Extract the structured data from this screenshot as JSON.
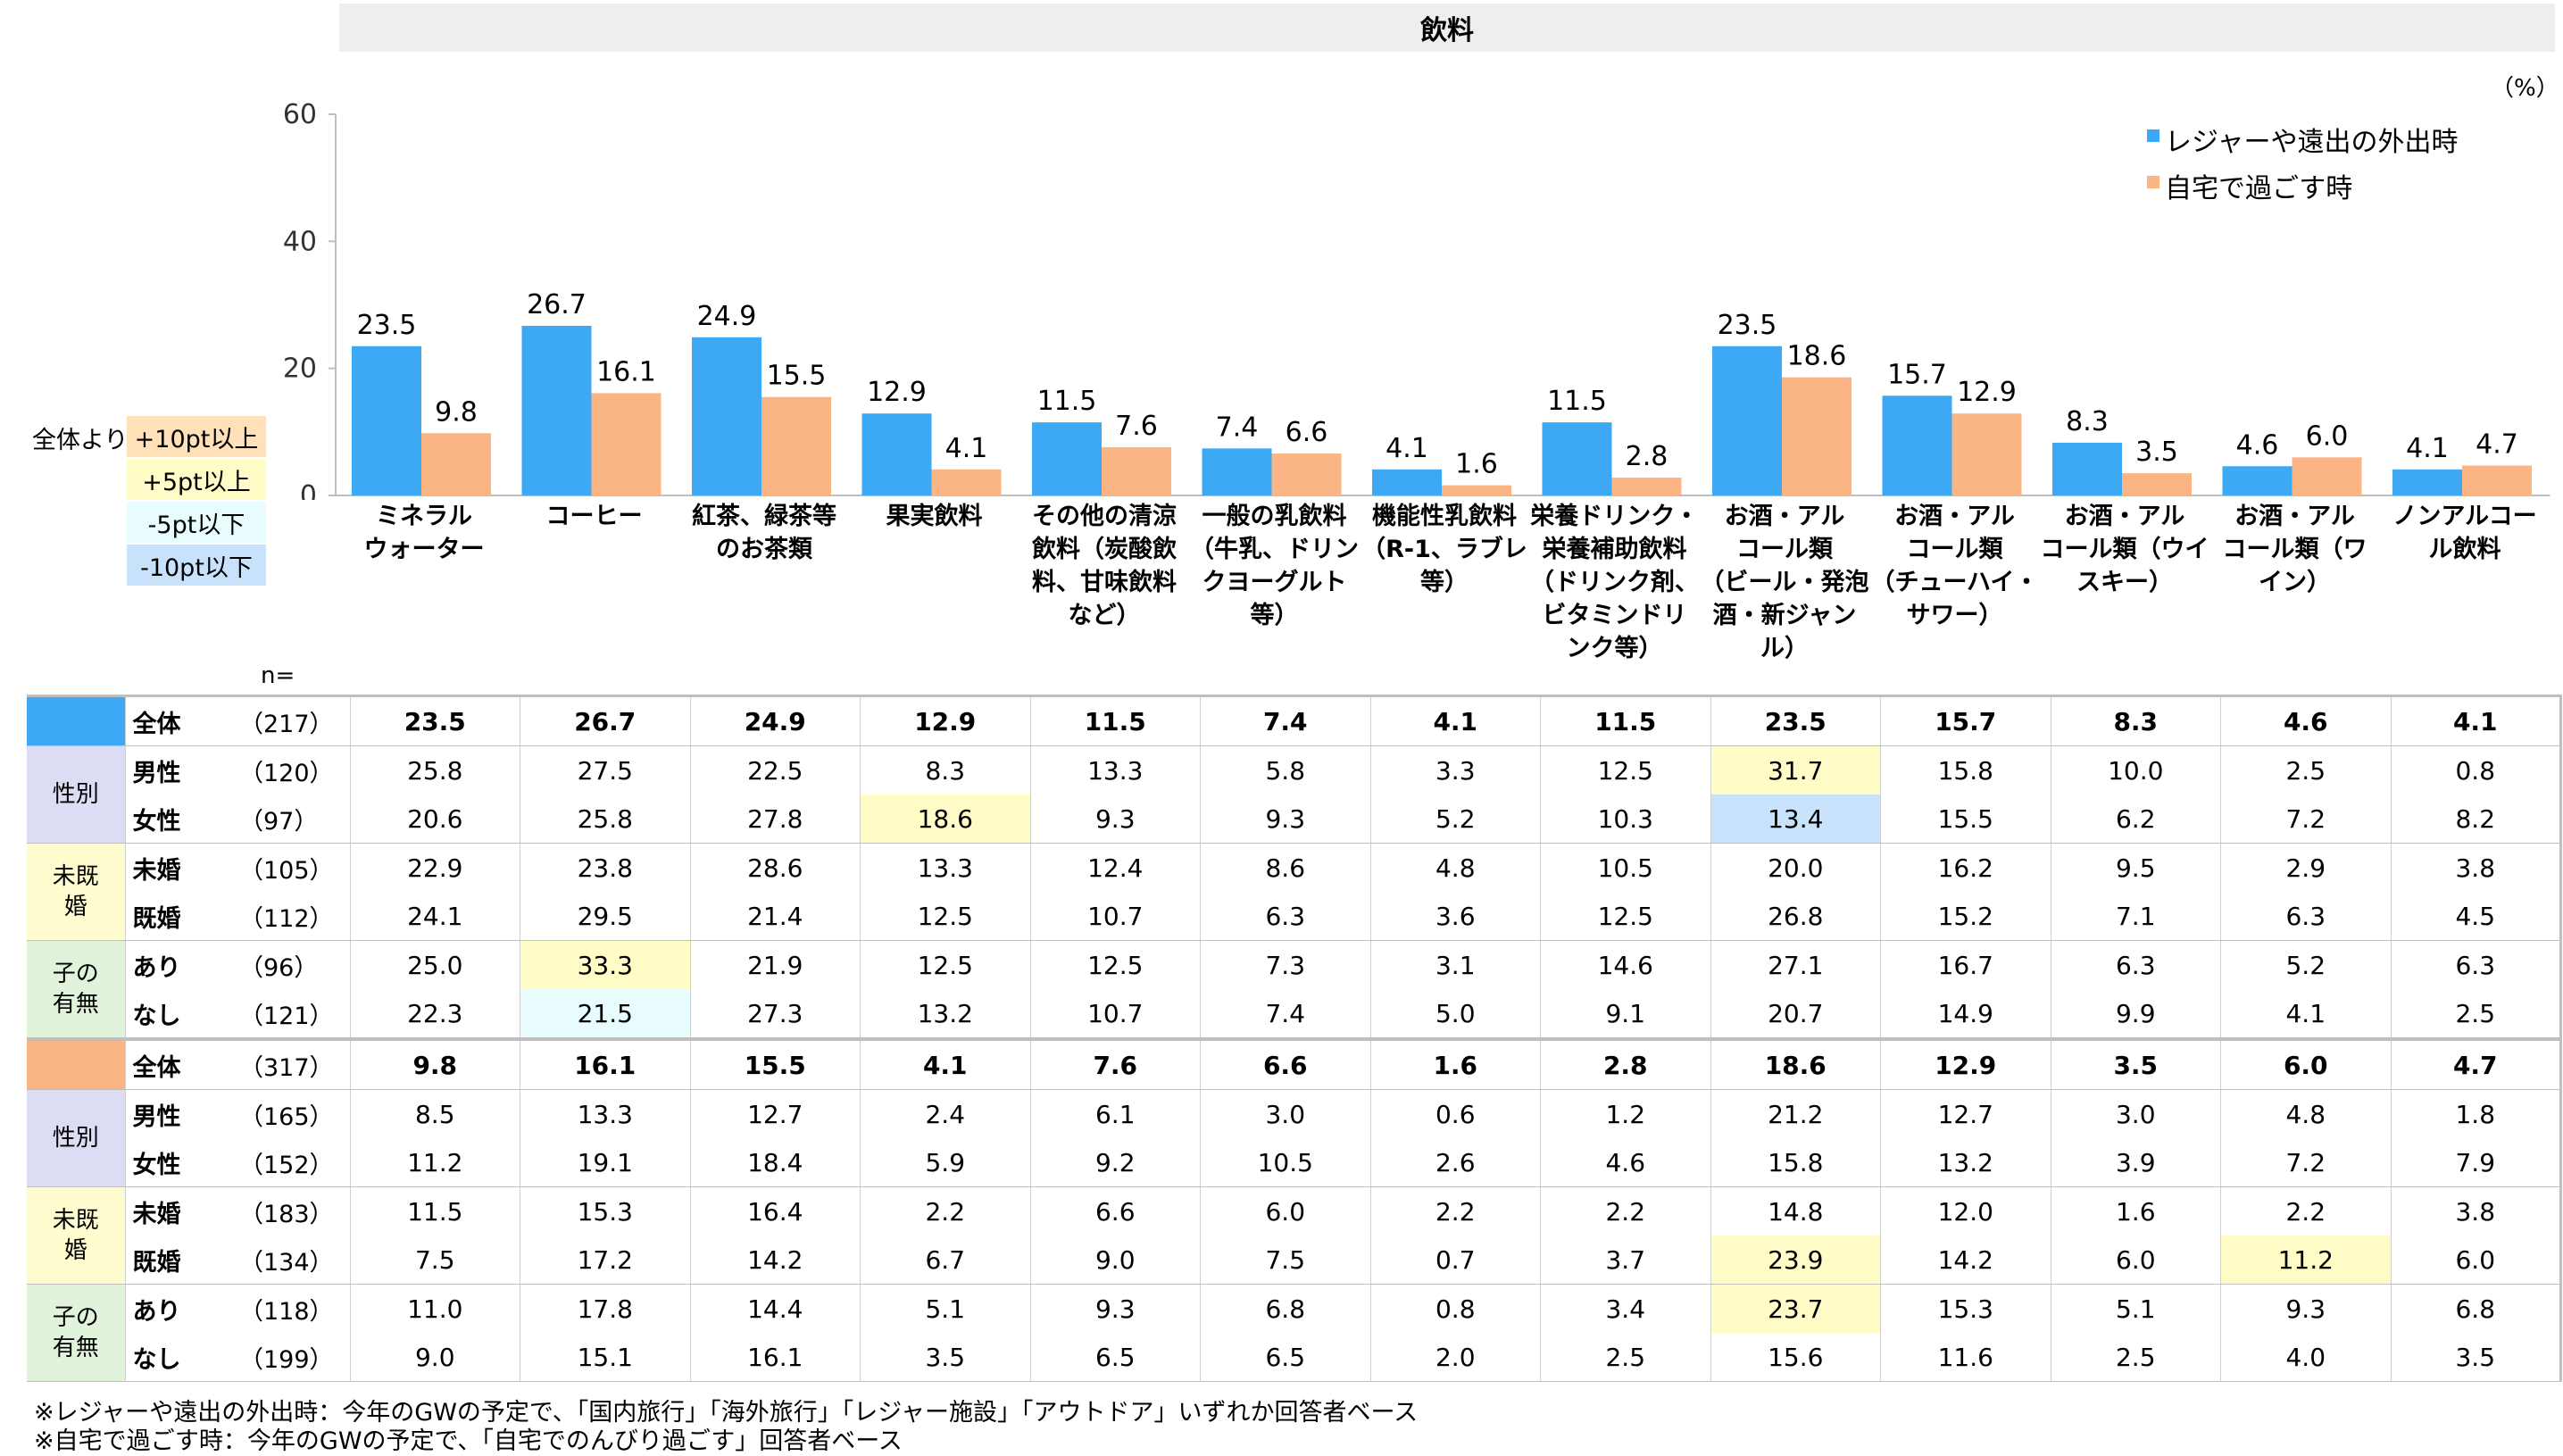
{
  "page": {
    "title": "飲料",
    "unit": "（%）"
  },
  "legend": [
    {
      "label": "レジャーや遠出の外出時",
      "color": "#3da9f4"
    },
    {
      "label": "自宅で過ごす時",
      "color": "#fbb584"
    }
  ],
  "highlight_legend": {
    "title": "全体より",
    "items": [
      {
        "label": "+10pt以上",
        "color": "#ffe0b8"
      },
      {
        "label": "+5pt以上",
        "color": "#fffcc8"
      },
      {
        "label": "-5pt以下",
        "color": "#e8fbfd"
      },
      {
        "label": "-10pt以下",
        "color": "#c8e2fb"
      }
    ]
  },
  "chart_data": {
    "type": "bar",
    "title": "飲料",
    "categories": [
      [
        "ミネラル",
        "ウォーター"
      ],
      [
        "コーヒー"
      ],
      [
        "紅茶、緑茶等",
        "のお茶類"
      ],
      [
        "果実飲料"
      ],
      [
        "その他の清涼",
        "飲料（炭酸飲",
        "料、甘味飲料",
        "など）"
      ],
      [
        "一般の乳飲料",
        "（牛乳、ドリン",
        "クヨーグルト",
        "等）"
      ],
      [
        "機能性乳飲料",
        "（R-1、ラブレ",
        "等）"
      ],
      [
        "栄養ドリンク・",
        "栄養補助飲料",
        "（ドリンク剤、",
        "ビタミンドリ",
        "ンク等）"
      ],
      [
        "お酒・アル",
        "コール類",
        "（ビール・発泡",
        "酒・新ジャン",
        "ル）"
      ],
      [
        "お酒・アル",
        "コール類",
        "（チューハイ・",
        "サワー）"
      ],
      [
        "お酒・アル",
        "コール類（ウイ",
        "スキー）"
      ],
      [
        "お酒・アル",
        "コール類（ワ",
        "イン）"
      ],
      [
        "ノンアルコー",
        "ル飲料"
      ]
    ],
    "series": [
      {
        "name": "レジャーや遠出の外出時",
        "values": [
          23.5,
          26.7,
          24.9,
          12.9,
          11.5,
          7.4,
          4.1,
          11.5,
          23.5,
          15.7,
          8.3,
          4.6,
          4.1
        ]
      },
      {
        "name": "自宅で過ごす時",
        "values": [
          9.8,
          16.1,
          15.5,
          4.1,
          7.6,
          6.6,
          1.6,
          2.8,
          18.6,
          12.9,
          3.5,
          6.0,
          4.7
        ]
      }
    ],
    "ylim": [
      0,
      60
    ],
    "yticks": [
      0,
      20,
      40,
      60
    ],
    "xlabel": "",
    "ylabel": "",
    "legend_position": "top-right"
  },
  "table": {
    "n_label": "n=",
    "blocks": [
      {
        "color": "#3da9f4",
        "total": {
          "label": "全体",
          "n": "（217）",
          "values": [
            "23.5",
            "26.7",
            "24.9",
            "12.9",
            "11.5",
            "7.4",
            "4.1",
            "11.5",
            "23.5",
            "15.7",
            "8.3",
            "4.6",
            "4.1"
          ]
        },
        "groups": [
          {
            "label": "性別",
            "bg": "#dcdcf4",
            "rows": [
              {
                "label": "男性",
                "n": "（120）",
                "values": [
                  "25.8",
                  "27.5",
                  "22.5",
                  "8.3",
                  "13.3",
                  "5.8",
                  "3.3",
                  "12.5",
                  "31.7",
                  "15.8",
                  "10.0",
                  "2.5",
                  "0.8"
                ],
                "hl": {
                  "8": "#fffcc8"
                }
              },
              {
                "label": "女性",
                "n": "（97）",
                "values": [
                  "20.6",
                  "25.8",
                  "27.8",
                  "18.6",
                  "9.3",
                  "9.3",
                  "5.2",
                  "10.3",
                  "13.4",
                  "15.5",
                  "6.2",
                  "7.2",
                  "8.2"
                ],
                "hl": {
                  "3": "#fffcc8",
                  "8": "#c8e2fb"
                }
              }
            ]
          },
          {
            "label": "未既婚",
            "bg": "#fffcd0",
            "rows": [
              {
                "label": "未婚",
                "n": "（105）",
                "values": [
                  "22.9",
                  "23.8",
                  "28.6",
                  "13.3",
                  "12.4",
                  "8.6",
                  "4.8",
                  "10.5",
                  "20.0",
                  "16.2",
                  "9.5",
                  "2.9",
                  "3.8"
                ],
                "hl": {}
              },
              {
                "label": "既婚",
                "n": "（112）",
                "values": [
                  "24.1",
                  "29.5",
                  "21.4",
                  "12.5",
                  "10.7",
                  "6.3",
                  "3.6",
                  "12.5",
                  "26.8",
                  "15.2",
                  "7.1",
                  "6.3",
                  "4.5"
                ],
                "hl": {}
              }
            ]
          },
          {
            "label": "子の有無",
            "bg": "#e2f3dc",
            "rows": [
              {
                "label": "あり",
                "n": "（96）",
                "values": [
                  "25.0",
                  "33.3",
                  "21.9",
                  "12.5",
                  "12.5",
                  "7.3",
                  "3.1",
                  "14.6",
                  "27.1",
                  "16.7",
                  "6.3",
                  "5.2",
                  "6.3"
                ],
                "hl": {
                  "1": "#fffcc8"
                }
              },
              {
                "label": "なし",
                "n": "（121）",
                "values": [
                  "22.3",
                  "21.5",
                  "27.3",
                  "13.2",
                  "10.7",
                  "7.4",
                  "5.0",
                  "9.1",
                  "20.7",
                  "14.9",
                  "9.9",
                  "4.1",
                  "2.5"
                ],
                "hl": {
                  "1": "#e8fbfd"
                }
              }
            ]
          }
        ]
      },
      {
        "color": "#fbb584",
        "total": {
          "label": "全体",
          "n": "（317）",
          "values": [
            "9.8",
            "16.1",
            "15.5",
            "4.1",
            "7.6",
            "6.6",
            "1.6",
            "2.8",
            "18.6",
            "12.9",
            "3.5",
            "6.0",
            "4.7"
          ]
        },
        "groups": [
          {
            "label": "性別",
            "bg": "#dcdcf4",
            "rows": [
              {
                "label": "男性",
                "n": "（165）",
                "values": [
                  "8.5",
                  "13.3",
                  "12.7",
                  "2.4",
                  "6.1",
                  "3.0",
                  "0.6",
                  "1.2",
                  "21.2",
                  "12.7",
                  "3.0",
                  "4.8",
                  "1.8"
                ],
                "hl": {}
              },
              {
                "label": "女性",
                "n": "（152）",
                "values": [
                  "11.2",
                  "19.1",
                  "18.4",
                  "5.9",
                  "9.2",
                  "10.5",
                  "2.6",
                  "4.6",
                  "15.8",
                  "13.2",
                  "3.9",
                  "7.2",
                  "7.9"
                ],
                "hl": {}
              }
            ]
          },
          {
            "label": "未既婚",
            "bg": "#fffcd0",
            "rows": [
              {
                "label": "未婚",
                "n": "（183）",
                "values": [
                  "11.5",
                  "15.3",
                  "16.4",
                  "2.2",
                  "6.6",
                  "6.0",
                  "2.2",
                  "2.2",
                  "14.8",
                  "12.0",
                  "1.6",
                  "2.2",
                  "3.8"
                ],
                "hl": {}
              },
              {
                "label": "既婚",
                "n": "（134）",
                "values": [
                  "7.5",
                  "17.2",
                  "14.2",
                  "6.7",
                  "9.0",
                  "7.5",
                  "0.7",
                  "3.7",
                  "23.9",
                  "14.2",
                  "6.0",
                  "11.2",
                  "6.0"
                ],
                "hl": {
                  "8": "#fffcc8",
                  "11": "#fffcc8"
                }
              }
            ]
          },
          {
            "label": "子の有無",
            "bg": "#e2f3dc",
            "rows": [
              {
                "label": "あり",
                "n": "（118）",
                "values": [
                  "11.0",
                  "17.8",
                  "14.4",
                  "5.1",
                  "9.3",
                  "6.8",
                  "0.8",
                  "3.4",
                  "23.7",
                  "15.3",
                  "5.1",
                  "9.3",
                  "6.8"
                ],
                "hl": {
                  "8": "#fffcc8"
                }
              },
              {
                "label": "なし",
                "n": "（199）",
                "values": [
                  "9.0",
                  "15.1",
                  "16.1",
                  "3.5",
                  "6.5",
                  "6.5",
                  "2.0",
                  "2.5",
                  "15.6",
                  "11.6",
                  "2.5",
                  "4.0",
                  "3.5"
                ],
                "hl": {}
              }
            ]
          }
        ]
      }
    ]
  },
  "footnotes": [
    "※レジャーや遠出の外出時：今年のGWの予定で、「国内旅行」「海外旅行」「レジャー施設」「アウトドア」いずれか回答者ベース",
    "※自宅で過ごす時：今年のGWの予定で、「自宅でのんびり過ごす」回答者ベース"
  ]
}
